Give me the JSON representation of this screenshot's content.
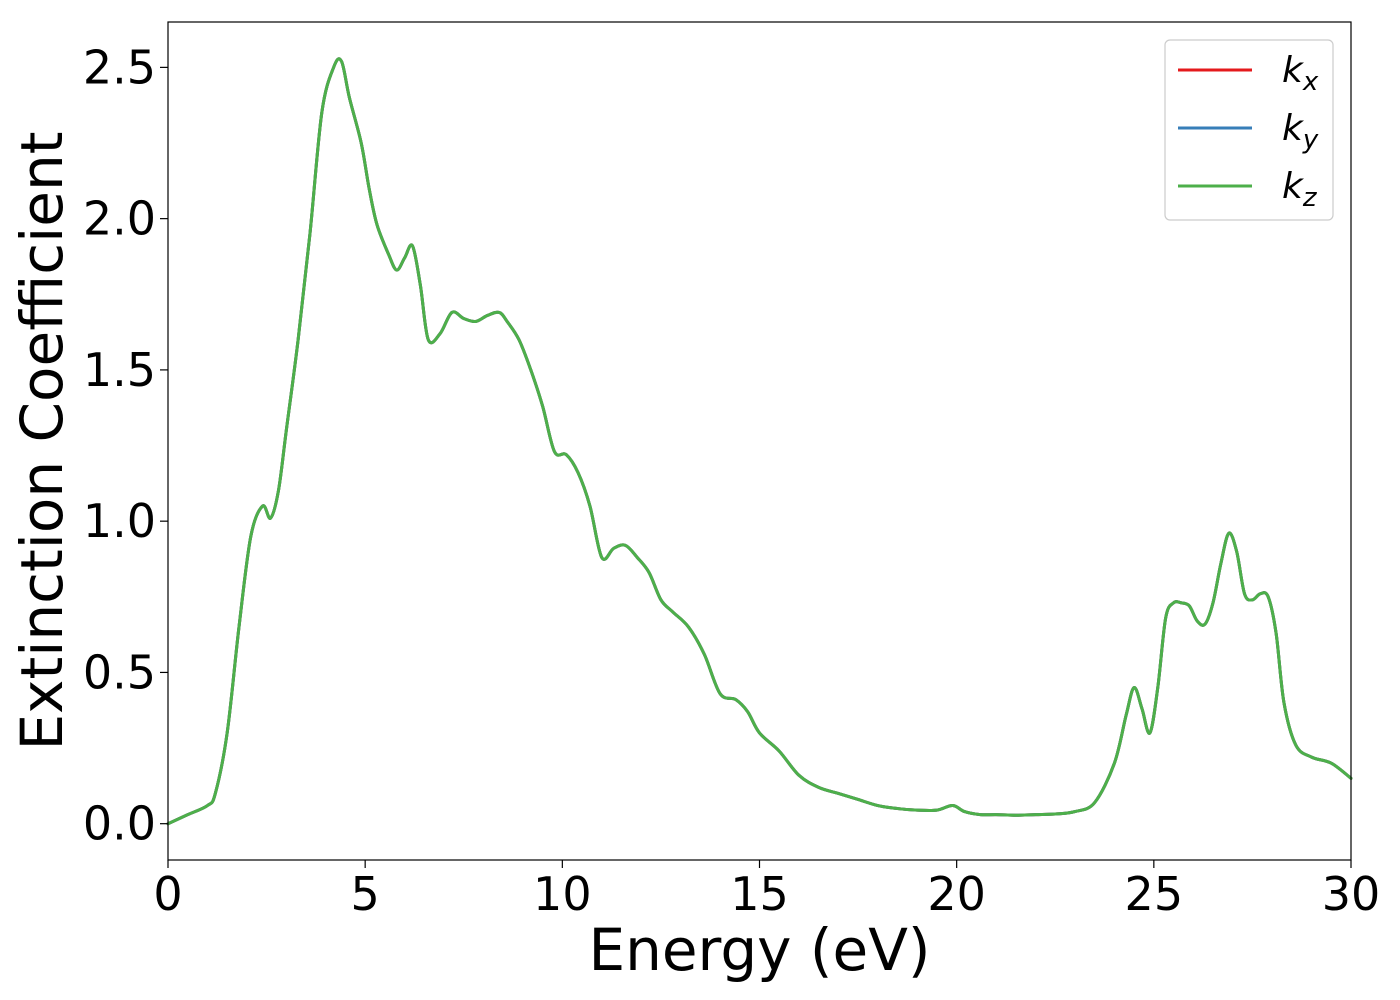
{
  "chart_data": {
    "type": "line",
    "title": "",
    "xlabel": "Energy (eV)",
    "ylabel": "Extinction Coefficient",
    "xlim": [
      0,
      30
    ],
    "ylim": [
      -0.12,
      2.65
    ],
    "xticks": [
      0,
      5,
      10,
      15,
      20,
      25,
      30
    ],
    "xtick_labels": [
      "0",
      "5",
      "10",
      "15",
      "20",
      "25",
      "30"
    ],
    "yticks": [
      0.0,
      0.5,
      1.0,
      1.5,
      2.0,
      2.5
    ],
    "ytick_labels": [
      "0.0",
      "0.5",
      "1.0",
      "1.5",
      "2.0",
      "2.5"
    ],
    "grid": false,
    "legend_position": "top-right",
    "series": [
      {
        "name": "k",
        "subscript": "x",
        "color": "#e41a1c"
      },
      {
        "name": "k",
        "subscript": "y",
        "color": "#377eb8"
      },
      {
        "name": "k",
        "subscript": "z",
        "color": "#4daf4a"
      }
    ],
    "x": [
      0,
      0.5,
      1.0,
      1.2,
      1.5,
      1.8,
      2.1,
      2.4,
      2.6,
      2.8,
      3.0,
      3.3,
      3.6,
      3.9,
      4.2,
      4.4,
      4.6,
      4.9,
      5.1,
      5.3,
      5.6,
      5.8,
      6.0,
      6.2,
      6.4,
      6.6,
      6.9,
      7.2,
      7.5,
      7.8,
      8.1,
      8.4,
      8.6,
      8.9,
      9.2,
      9.5,
      9.8,
      10.1,
      10.4,
      10.7,
      11.0,
      11.3,
      11.6,
      11.9,
      12.2,
      12.5,
      12.8,
      13.2,
      13.6,
      14.0,
      14.4,
      14.7,
      15.0,
      15.5,
      16.0,
      16.5,
      17.0,
      17.5,
      18.0,
      18.5,
      19.0,
      19.5,
      19.9,
      20.2,
      20.6,
      21.0,
      21.5,
      22.0,
      22.5,
      23.0,
      23.5,
      24.0,
      24.3,
      24.5,
      24.7,
      24.9,
      25.1,
      25.3,
      25.5,
      25.7,
      25.9,
      26.1,
      26.3,
      26.5,
      26.7,
      26.9,
      27.1,
      27.3,
      27.5,
      27.7,
      27.9,
      28.1,
      28.3,
      28.6,
      29.0,
      29.5,
      30.0
    ],
    "values": [
      0.0,
      0.03,
      0.06,
      0.1,
      0.3,
      0.65,
      0.95,
      1.05,
      1.01,
      1.1,
      1.3,
      1.6,
      1.95,
      2.35,
      2.5,
      2.52,
      2.4,
      2.25,
      2.1,
      1.98,
      1.88,
      1.83,
      1.87,
      1.91,
      1.78,
      1.6,
      1.62,
      1.69,
      1.67,
      1.66,
      1.68,
      1.69,
      1.66,
      1.6,
      1.5,
      1.38,
      1.23,
      1.22,
      1.16,
      1.05,
      0.88,
      0.91,
      0.92,
      0.88,
      0.83,
      0.74,
      0.7,
      0.65,
      0.56,
      0.43,
      0.41,
      0.37,
      0.3,
      0.24,
      0.16,
      0.12,
      0.1,
      0.08,
      0.06,
      0.05,
      0.045,
      0.045,
      0.06,
      0.04,
      0.03,
      0.03,
      0.028,
      0.03,
      0.032,
      0.04,
      0.07,
      0.2,
      0.36,
      0.45,
      0.38,
      0.3,
      0.45,
      0.68,
      0.73,
      0.73,
      0.72,
      0.67,
      0.66,
      0.73,
      0.86,
      0.96,
      0.9,
      0.76,
      0.74,
      0.76,
      0.75,
      0.63,
      0.4,
      0.26,
      0.22,
      0.2,
      0.15
    ]
  }
}
